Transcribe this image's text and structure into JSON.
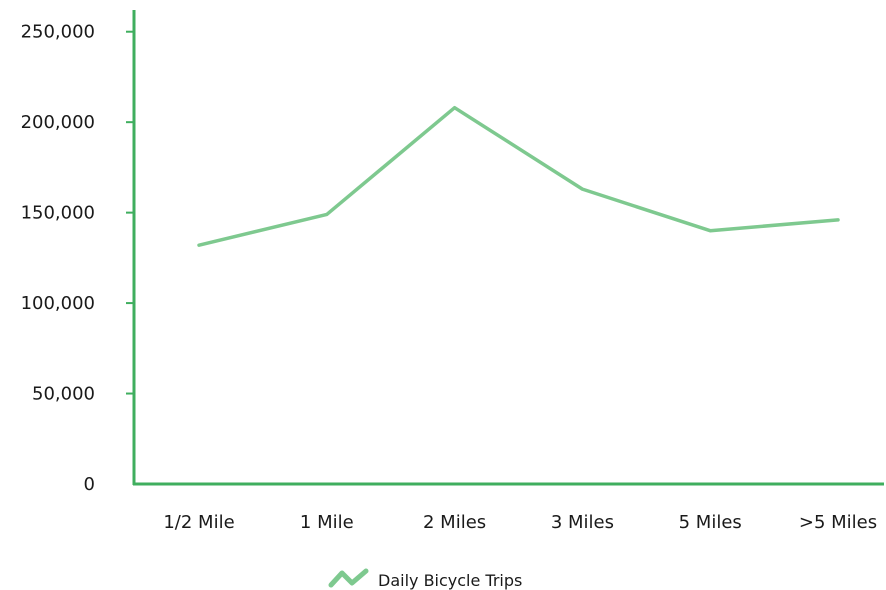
{
  "chart_data": {
    "type": "line",
    "categories": [
      "1/2 Mile",
      "1 Mile",
      "2 Miles",
      "3 Miles",
      "5 Miles",
      ">5 Miles"
    ],
    "series": [
      {
        "name": "Daily Bicycle Trips",
        "values": [
          132000,
          149000,
          208000,
          163000,
          140000,
          146000
        ]
      }
    ],
    "y_ticks": [
      "250,000",
      "200,000",
      "150,000",
      "100,000",
      "50,000",
      "0"
    ],
    "y_tick_values": [
      250000,
      200000,
      150000,
      100000,
      50000,
      0
    ],
    "ylim": [
      0,
      250000
    ],
    "grid": false,
    "legend_position": "bottom-center",
    "colors": {
      "axis": "#3fae5e",
      "line": "#7ec98f",
      "text": "#1a1a1a"
    }
  }
}
